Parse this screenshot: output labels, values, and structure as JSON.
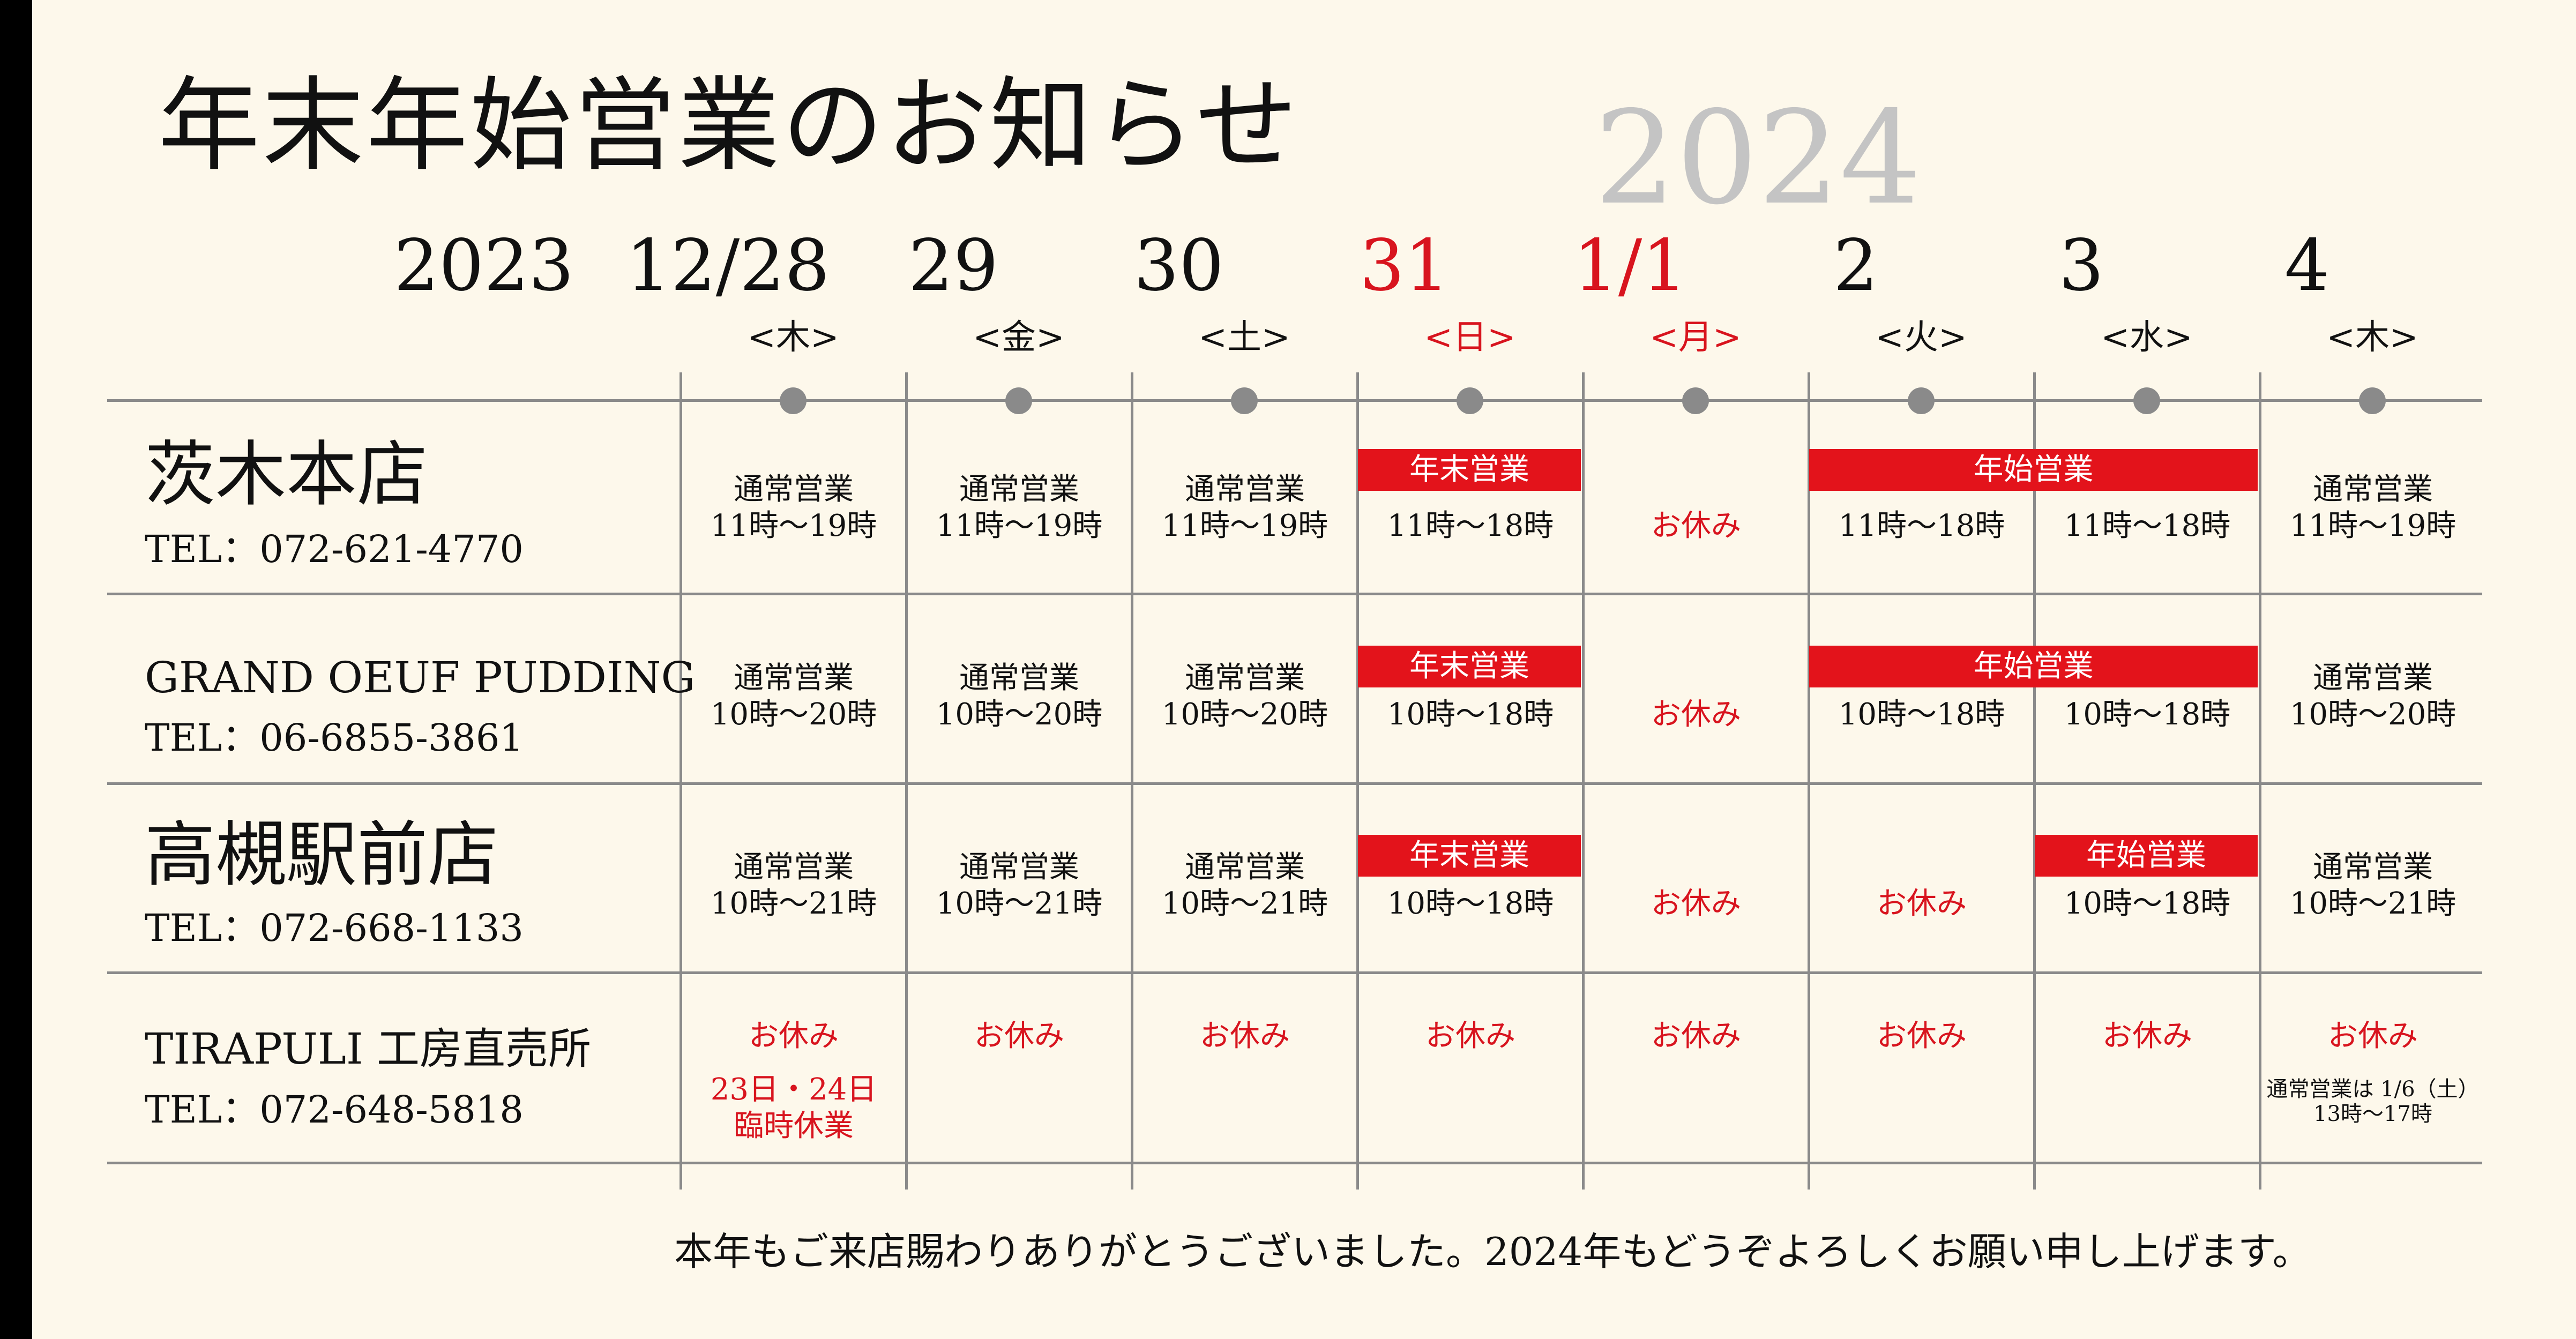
{
  "title": "年末年始営業のお知らせ",
  "year_next": "2024",
  "year_start": "2023",
  "days": [
    {
      "date": "12/28",
      "dow": "<木>",
      "red": false
    },
    {
      "date": "29",
      "dow": "<金>",
      "red": false
    },
    {
      "date": "30",
      "dow": "<土>",
      "red": false
    },
    {
      "date": "31",
      "dow": "<日>",
      "red": true
    },
    {
      "date": "1/1",
      "dow": "<月>",
      "red": true
    },
    {
      "date": "2",
      "dow": "<火>",
      "red": false
    },
    {
      "date": "3",
      "dow": "<水>",
      "red": false
    },
    {
      "date": "4",
      "dow": "<木>",
      "red": false
    }
  ],
  "stores": [
    {
      "name": "茨木本店",
      "tel": "TEL：072-621-4770"
    },
    {
      "name": "GRAND OEUF PUDDING",
      "tel": "TEL：06-6855-3861"
    },
    {
      "name": "高槻駅前店",
      "tel": "TEL：072-668-1133"
    },
    {
      "name": "TIRAPULI 工房直売所",
      "tel": "TEL：072-648-5818"
    }
  ],
  "labels": {
    "normal": "通常営業",
    "closed": "お休み",
    "year_end": "年末営業",
    "new_year": "年始営業"
  },
  "hours": {
    "h11_19": "11時～19時",
    "h11_18": "11時～18時",
    "h10_20": "10時～20時",
    "h10_18": "10時～18時",
    "h10_21": "10時～21時"
  },
  "tirapuli_notes": {
    "extra_closed": "23日・24日",
    "extra_closed_2": "臨時休業",
    "resume": "通常営業は 1/6（土）",
    "resume_hours": "13時～17時"
  },
  "footer": "本年もご来店賜わりありがとうございました。2024年もどうぞよろしくお願い申し上げます。",
  "colors": {
    "accent_red": "#e3131b",
    "grid": "#8a8a8a",
    "background": "#fdf8eb"
  }
}
